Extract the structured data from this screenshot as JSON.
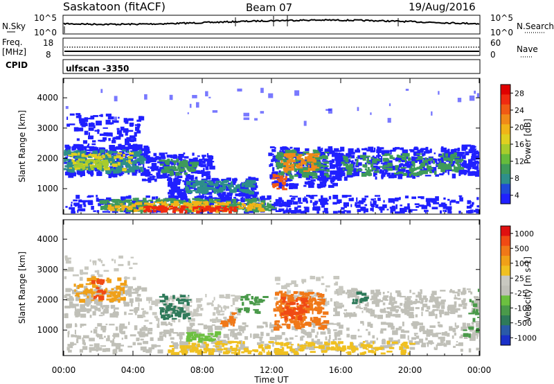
{
  "header": {
    "station": "Saskatoon (fitACF)",
    "beam": "Beam 07",
    "date": "19/Aug/2016"
  },
  "top_panels": {
    "noise": {
      "left_label": "N.Sky",
      "left_ticks": [
        "10^5",
        "10^0"
      ],
      "right_ticks": [
        "10^5",
        "10^0"
      ],
      "right_label": "N.Search"
    },
    "freq": {
      "left_label_1": "Freq.",
      "left_label_2": "[MHz]",
      "left_ticks": [
        "18",
        "8"
      ],
      "right_ticks": [
        "60",
        "0"
      ],
      "right_label": "Nave"
    },
    "cpid": {
      "label": "CPID",
      "value": "ulfscan -3350"
    }
  },
  "chart_data": [
    {
      "type": "heatmap",
      "name": "power",
      "ylabel": "Slant Range [km]",
      "yticks": [
        1000,
        2000,
        3000,
        4000
      ],
      "ylim": [
        180,
        4620
      ],
      "xlim_hours": [
        0,
        24
      ],
      "colorbar": {
        "label": "Power [dB]",
        "ticks": [
          "28",
          "24",
          "20",
          "16",
          "12",
          "8",
          "4"
        ],
        "colors": [
          "#2020ff",
          "#204ad8",
          "#2e8f8a",
          "#3f9a5a",
          "#66bb3c",
          "#a8cc2c",
          "#e0d020",
          "#f0b418",
          "#f08a18",
          "#f05a14",
          "#f02a10",
          "#e00000"
        ]
      }
    },
    {
      "type": "heatmap",
      "name": "velocity",
      "ylabel": "Slant Range [km]",
      "yticks": [
        1000,
        2000,
        3000,
        4000
      ],
      "ylim": [
        180,
        4620
      ],
      "xlim_hours": [
        0,
        24
      ],
      "xticks": [
        "00:00",
        "04:00",
        "08:00",
        "12:00",
        "16:00",
        "20:00",
        "00:00"
      ],
      "xlabel": "Time UT",
      "colorbar": {
        "label": "Velocity [m s-1]",
        "ticks": [
          "1000",
          "500",
          "100",
          "25",
          "-25",
          "-100",
          "-500",
          "-1000"
        ],
        "colors": [
          "#1a30c8",
          "#2a5aa8",
          "#2e7a5a",
          "#4a9a4a",
          "#6cc040",
          "#c0c0b8",
          "#c8c8c0",
          "#f0c020",
          "#f0a018",
          "#f07818",
          "#f04a14",
          "#e01010"
        ]
      }
    }
  ]
}
